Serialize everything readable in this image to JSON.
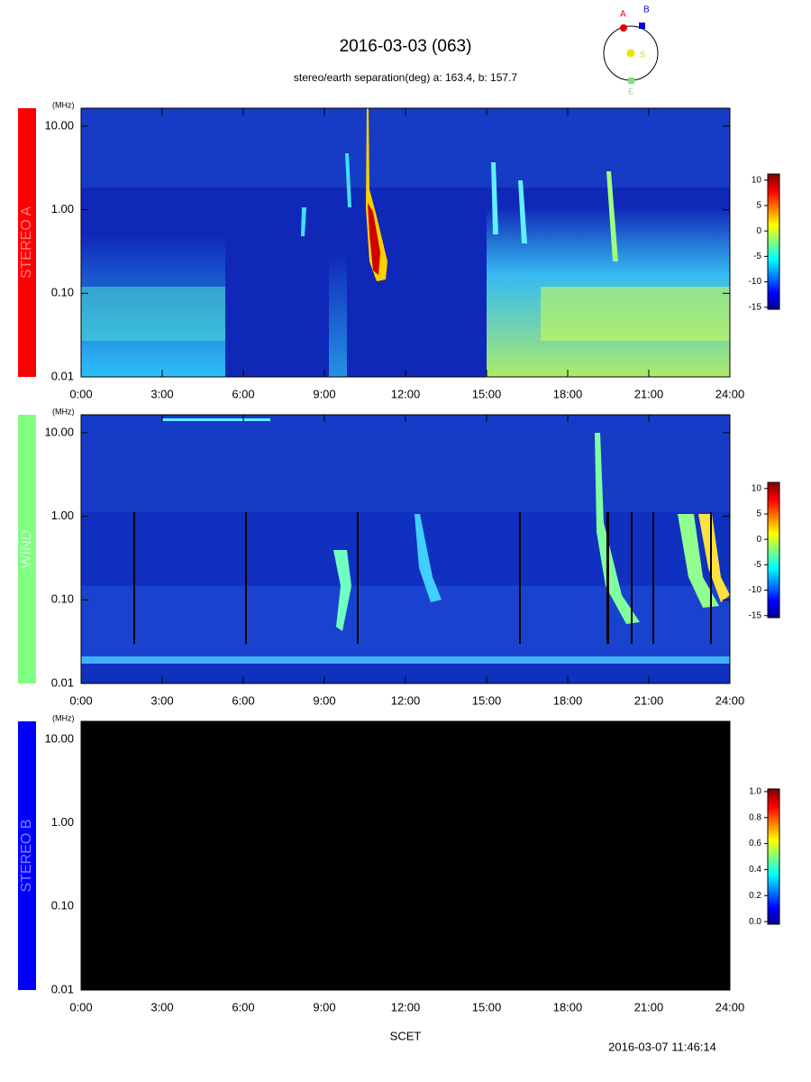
{
  "header": {
    "title": "2016-03-03 (063)",
    "subtitle": "stereo/earth separation(deg) a: 163.4, b: 157.7"
  },
  "orbit": {
    "labels": [
      "A",
      "B",
      "S",
      "E"
    ]
  },
  "panels": [
    {
      "label": "STEREO A",
      "unit": "(MHz)",
      "ylim": [
        0.01,
        16.4
      ],
      "yticks": [
        {
          "value": 0.01,
          "label": "0.01"
        },
        {
          "value": 0.1,
          "label": "0.10"
        },
        {
          "value": 1,
          "label": "1.00"
        },
        {
          "value": 10,
          "label": "10.00"
        }
      ],
      "xlim": [
        0,
        24
      ],
      "xticks": [
        {
          "value": 0,
          "label": "0:00"
        },
        {
          "value": 3,
          "label": "3:00"
        },
        {
          "value": 6,
          "label": "6:00"
        },
        {
          "value": 9,
          "label": "9:00"
        },
        {
          "value": 12,
          "label": "12:00"
        },
        {
          "value": 15,
          "label": "15:00"
        },
        {
          "value": 18,
          "label": "18:00"
        },
        {
          "value": 21,
          "label": "21:00"
        },
        {
          "value": 24,
          "label": "24:00"
        }
      ],
      "colorbar": {
        "lim": [
          -15.4,
          11.2
        ],
        "ticks": [
          10,
          5,
          0,
          -5,
          -10,
          -15
        ]
      }
    },
    {
      "label": "WIND",
      "unit": "(MHz)",
      "ylim": [
        0.01,
        16.4
      ],
      "yticks": [
        {
          "value": 0.01,
          "label": "0.01"
        },
        {
          "value": 0.1,
          "label": "0.10"
        },
        {
          "value": 1,
          "label": "1.00"
        },
        {
          "value": 10,
          "label": "10.00"
        }
      ],
      "xlim": [
        0,
        24
      ],
      "xticks": [
        {
          "value": 0,
          "label": "0:00"
        },
        {
          "value": 3,
          "label": "3:00"
        },
        {
          "value": 6,
          "label": "6:00"
        },
        {
          "value": 9,
          "label": "9:00"
        },
        {
          "value": 12,
          "label": "12:00"
        },
        {
          "value": 15,
          "label": "15:00"
        },
        {
          "value": 18,
          "label": "18:00"
        },
        {
          "value": 21,
          "label": "21:00"
        },
        {
          "value": 24,
          "label": "24:00"
        }
      ],
      "colorbar": {
        "lim": [
          -15.4,
          11.2
        ],
        "ticks": [
          10,
          5,
          0,
          -5,
          -10,
          -15
        ]
      }
    },
    {
      "label": "STEREO B",
      "unit": "(MHz)",
      "ylim": [
        0.01,
        16.4
      ],
      "yticks": [
        {
          "value": 0.01,
          "label": "0.01"
        },
        {
          "value": 0.1,
          "label": "0.10"
        },
        {
          "value": 1,
          "label": "1.00"
        },
        {
          "value": 10,
          "label": "10.00"
        }
      ],
      "xlim": [
        0,
        24
      ],
      "xticks": [
        {
          "value": 0,
          "label": "0:00"
        },
        {
          "value": 3,
          "label": "3:00"
        },
        {
          "value": 6,
          "label": "6:00"
        },
        {
          "value": 9,
          "label": "9:00"
        },
        {
          "value": 12,
          "label": "12:00"
        },
        {
          "value": 15,
          "label": "15:00"
        },
        {
          "value": 18,
          "label": "18:00"
        },
        {
          "value": 21,
          "label": "21:00"
        },
        {
          "value": 24,
          "label": "24:00"
        }
      ],
      "colorbar": {
        "lim": [
          -0.02,
          1.02
        ],
        "ticks": [
          {
            "value": 0,
            "label": "0.0"
          },
          {
            "value": 0.2,
            "label": "0.2"
          },
          {
            "value": 0.4,
            "label": "0.4"
          },
          {
            "value": 0.6,
            "label": "0.6"
          },
          {
            "value": 0.8,
            "label": "0.8"
          },
          {
            "value": 1,
            "label": "1.0"
          }
        ]
      }
    }
  ],
  "xlabel": "SCET",
  "timestamp": "2016-03-07 11:46:14"
}
